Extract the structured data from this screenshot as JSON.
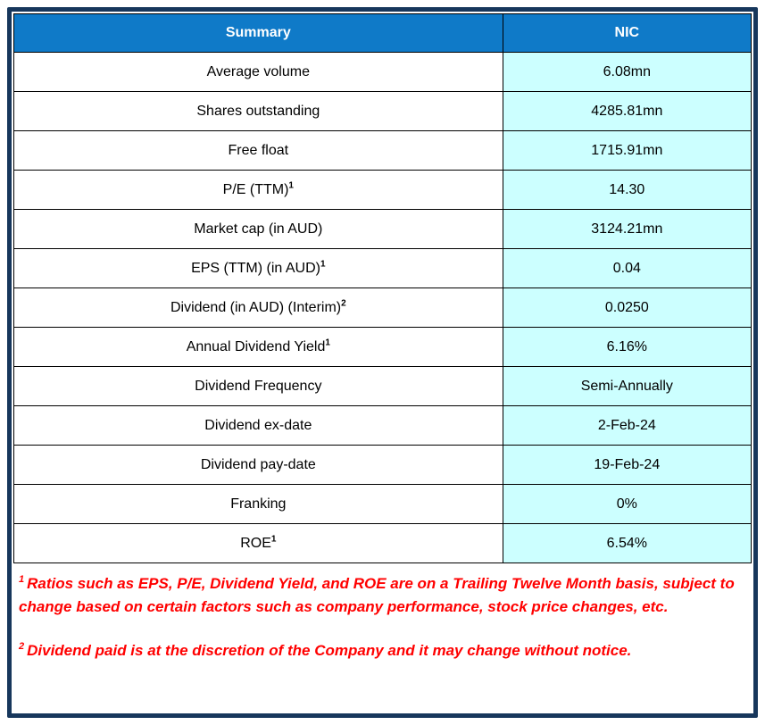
{
  "colors": {
    "header_bg": "#0F7AC8",
    "value_col_bg": "#CCFFFF",
    "frame_border": "#17375C",
    "footnote_color": "#FF0000"
  },
  "table": {
    "columns": [
      "Summary",
      "NIC"
    ],
    "rows": [
      {
        "label": "Average volume",
        "sup": "",
        "value": "6.08mn"
      },
      {
        "label": "Shares outstanding",
        "sup": "",
        "value": "4285.81mn"
      },
      {
        "label": "Free float",
        "sup": "",
        "value": "1715.91mn"
      },
      {
        "label": "P/E (TTM)",
        "sup": "1",
        "value": "14.30"
      },
      {
        "label": "Market cap (in AUD)",
        "sup": "",
        "value": "3124.21mn"
      },
      {
        "label": "EPS (TTM) (in AUD)",
        "sup": "1",
        "value": "0.04"
      },
      {
        "label": "Dividend (in AUD) (Interim)",
        "sup": "2",
        "value": "0.0250"
      },
      {
        "label": "Annual Dividend Yield",
        "sup": "1",
        "value": "6.16%"
      },
      {
        "label": "Dividend Frequency",
        "sup": "",
        "value": "Semi-Annually"
      },
      {
        "label": "Dividend ex-date",
        "sup": "",
        "value": "2-Feb-24"
      },
      {
        "label": "Dividend pay-date",
        "sup": "",
        "value": "19-Feb-24"
      },
      {
        "label": "Franking",
        "sup": "",
        "value": "0%"
      },
      {
        "label": "ROE",
        "sup": "1",
        "value": "6.54%"
      }
    ]
  },
  "footnotes": [
    {
      "sup": "1",
      "text": "Ratios such as EPS, P/E, Dividend Yield, and ROE are on a Trailing Twelve Month basis, subject to change based on certain factors such as company performance, stock price changes, etc."
    },
    {
      "sup": "2",
      "text": "Dividend paid is at the discretion of the Company and it may change without notice."
    }
  ]
}
